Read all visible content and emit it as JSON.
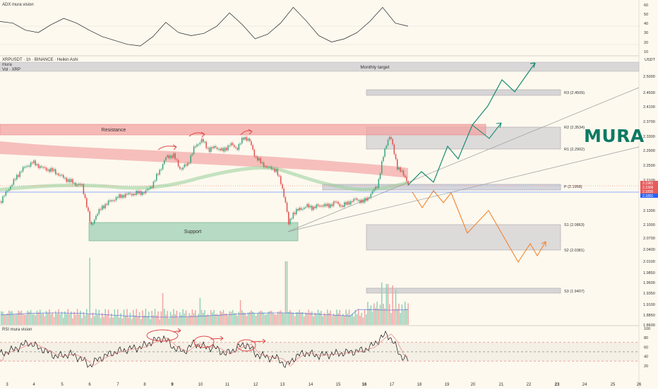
{
  "header": {
    "adx_title": "ADX mura vision",
    "symbol_line": "XRPUSDT · 1h · BINANCE · Heikin Ashi",
    "study_line1": "mura",
    "study_line2": "Vol · XRP",
    "rsi_title": "RSI mura vision",
    "currency": "USDT"
  },
  "logo_text": "MURA",
  "zones": {
    "monthly_target": "Monthly target",
    "resistance": "Resistance",
    "support": "Support"
  },
  "levels": [
    {
      "label": "R3 (2.4509)",
      "value": 2.4509
    },
    {
      "label": "R2 (2.3534)",
      "value": 2.3534
    },
    {
      "label": "R1 (2.2902)",
      "value": 2.2902
    },
    {
      "label": "P (2.1958)",
      "value": 2.1958
    },
    {
      "label": "S1 (2.0863)",
      "value": 2.0863
    },
    {
      "label": "S2 (2.0381)",
      "value": 2.0381
    },
    {
      "label": "S3 (1.9407)",
      "value": 1.9407
    }
  ],
  "colors": {
    "background": "#fdf9ef",
    "bull": "#26a69a",
    "bear": "#ef5350",
    "bull_path": "#1b8a72",
    "bear_path": "#f5832a",
    "resistance": "#f2a3a3",
    "support": "#a9d5bb",
    "price_tag": "#e75a5a",
    "blue_tag": "#2962ff"
  },
  "chart_data": [
    {
      "type": "line",
      "title": "ADX mura vision",
      "y_ticks": [
        "60",
        "50",
        "40",
        "30",
        "20",
        "10"
      ],
      "ylim": [
        5,
        65
      ],
      "x": [
        0,
        1,
        2,
        3,
        4,
        5,
        6,
        7,
        8,
        9,
        10,
        11,
        12,
        13,
        14,
        15,
        16,
        17,
        18,
        19,
        20,
        21,
        22,
        23,
        24,
        25,
        26,
        27,
        28,
        29,
        30,
        31,
        32
      ],
      "series": [
        {
          "values": [
            44,
            42,
            33,
            30,
            40,
            48,
            42,
            33,
            25,
            20,
            15,
            13,
            25,
            43,
            30,
            26,
            29,
            38,
            55,
            40,
            22,
            28,
            42,
            62,
            45,
            26,
            18,
            22,
            30,
            44,
            62,
            42,
            38
          ]
        }
      ]
    },
    {
      "type": "bar",
      "title": "XRPUSDT · 1h · BINANCE · Heikin Ashi",
      "x_tick_labels": [
        "3",
        "4",
        "5",
        "6",
        "7",
        "8",
        "9",
        "10",
        "11",
        "12",
        "13",
        "14",
        "15",
        "16",
        "17",
        "18",
        "19",
        "20",
        "21",
        "22",
        "23",
        "24",
        "25",
        "26"
      ],
      "y_tick_labels": [
        "2.5000",
        "2.4500",
        "2.4100",
        "2.3700",
        "2.3300",
        "2.2900",
        "2.2500",
        "2.2100",
        "2.1300",
        "2.1000",
        "2.0700",
        "2.0400",
        "2.0100",
        "1.9850",
        "1.9600",
        "1.9350",
        "1.9100",
        "1.8850",
        "1.8600"
      ],
      "price_tags": [
        "2.1961",
        "2.1906",
        "2.1835",
        "2.1801"
      ],
      "ylim": [
        1.855,
        2.545
      ],
      "annotations": [
        "Monthly target",
        "Resistance",
        "Support"
      ]
    },
    {
      "type": "line",
      "title": "RSI mura vision",
      "y_ticks": [
        "100",
        "80",
        "60",
        "40",
        "20"
      ],
      "ylim": [
        0,
        100
      ],
      "levels": [
        70,
        50,
        30
      ]
    }
  ]
}
